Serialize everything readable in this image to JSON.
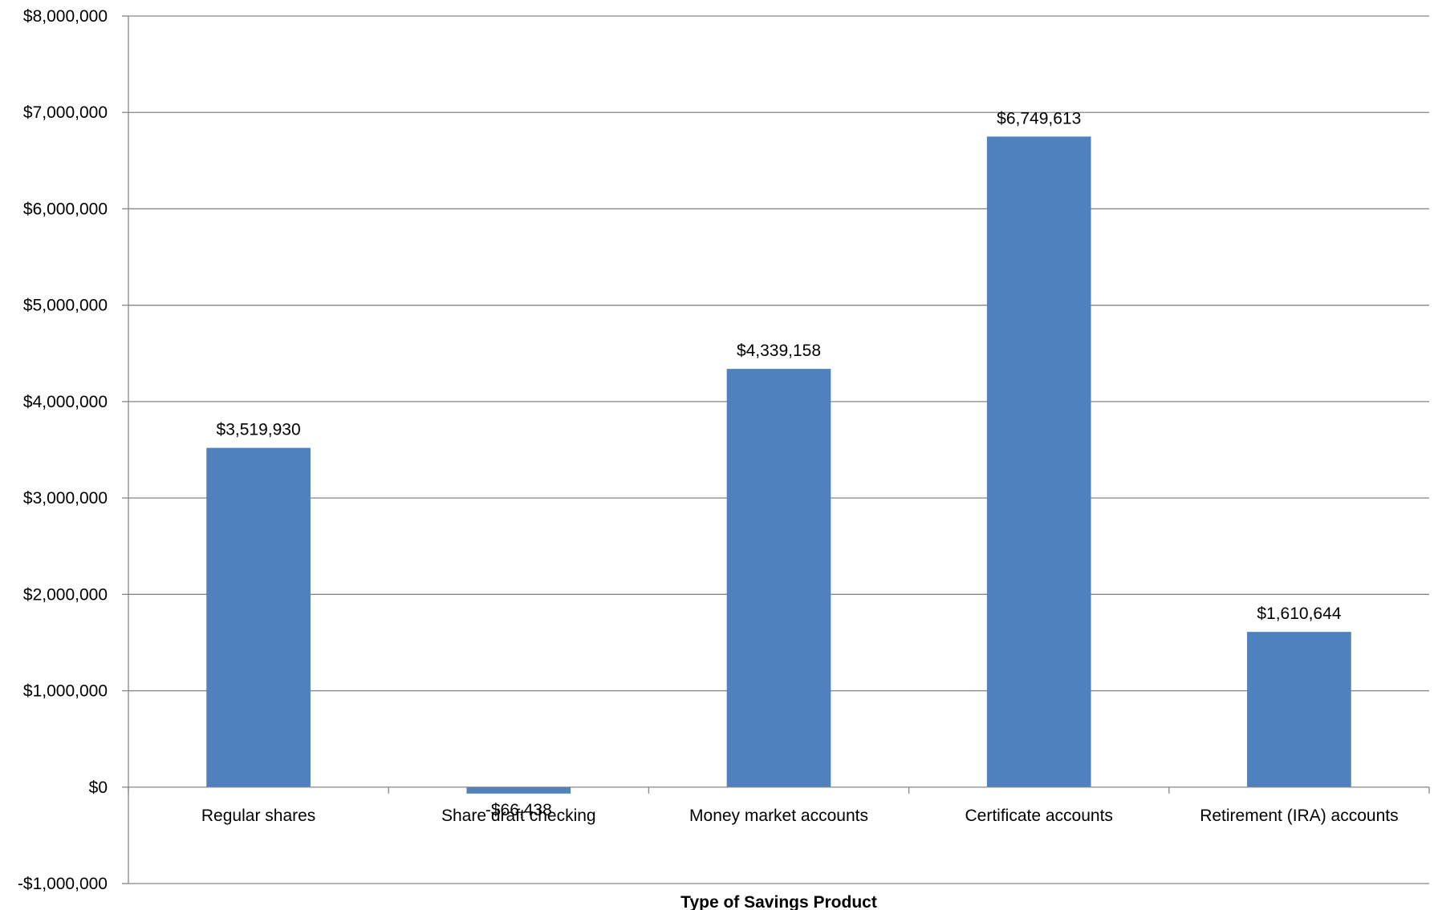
{
  "chart_data": {
    "type": "bar",
    "title": "",
    "xlabel": "Type of Savings Product",
    "ylabel": "",
    "categories": [
      "Regular shares",
      "Share draft checking",
      "Money market accounts",
      "Certificate accounts",
      "Retirement (IRA) accounts"
    ],
    "values": [
      3519930,
      -66438,
      4339158,
      6749613,
      1610644
    ],
    "data_labels": [
      "$3,519,930",
      "-$66,438",
      "$4,339,158",
      "$6,749,613",
      "$1,610,644"
    ],
    "ylim": [
      -1000000,
      8000000
    ],
    "yticks": [
      -1000000,
      0,
      1000000,
      2000000,
      3000000,
      4000000,
      5000000,
      6000000,
      7000000,
      8000000
    ],
    "ytick_labels": [
      "-$1,000,000",
      "$0",
      "$1,000,000",
      "$2,000,000",
      "$3,000,000",
      "$4,000,000",
      "$5,000,000",
      "$6,000,000",
      "$7,000,000",
      "$8,000,000"
    ],
    "grid": true,
    "legend": "none",
    "colors": {
      "bar": "#4F81BD",
      "grid": "#868686"
    }
  }
}
